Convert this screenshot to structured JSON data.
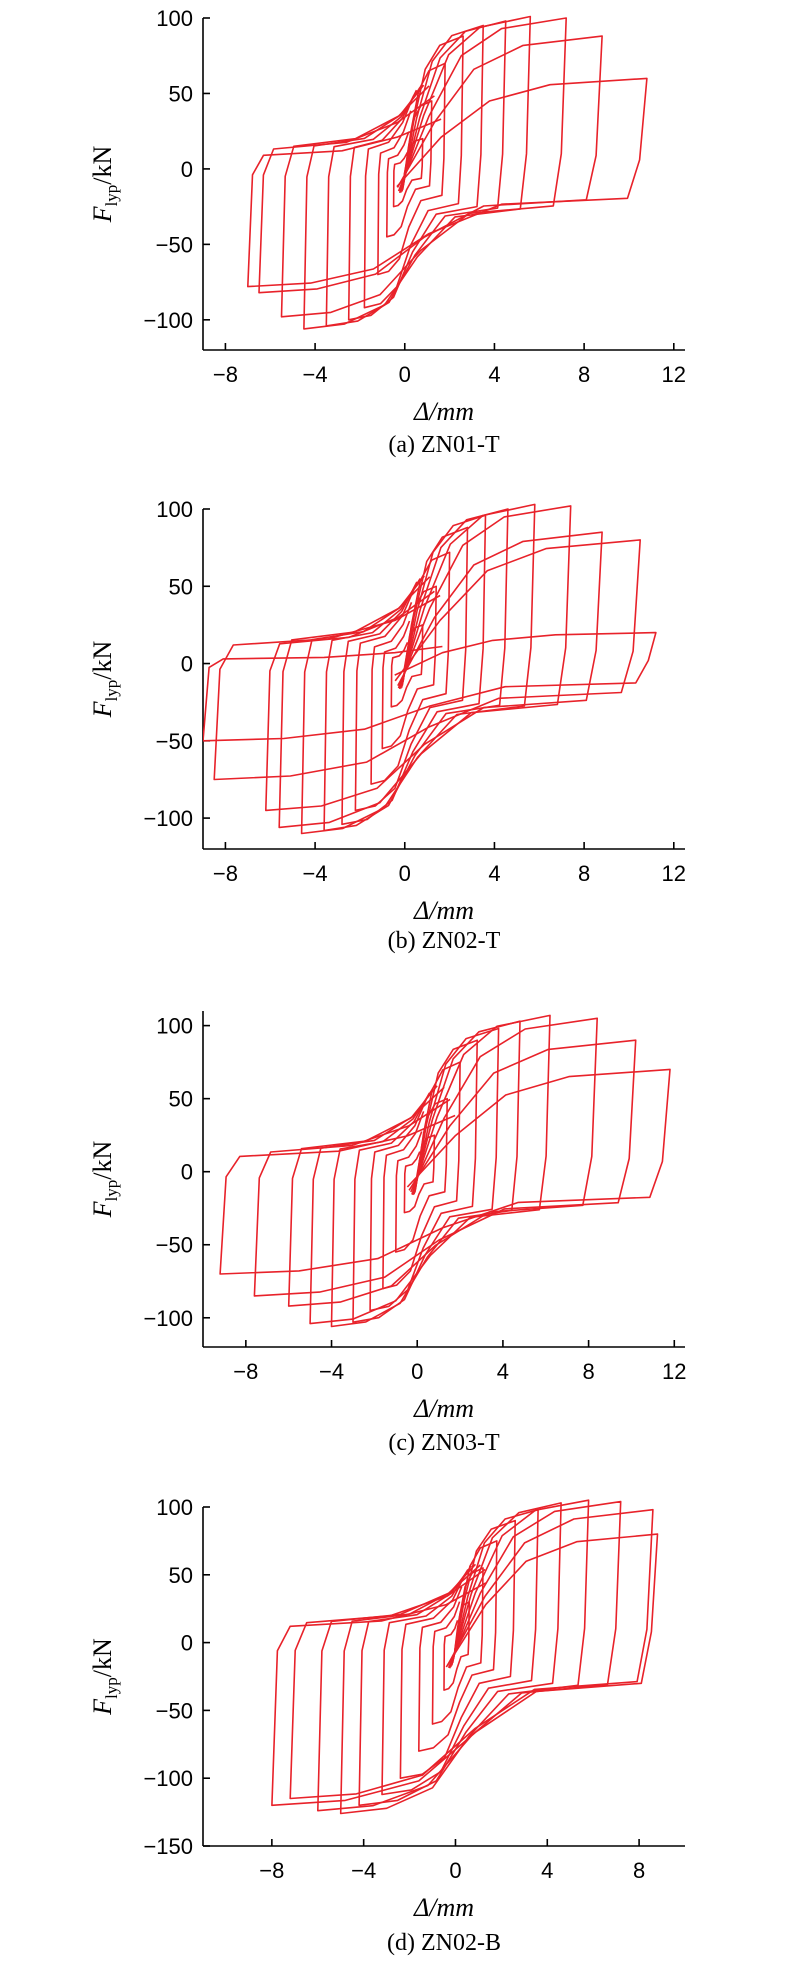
{
  "chart_data": [
    {
      "type": "line",
      "caption": "(a) ZN01-T",
      "xlabel": "Δ/mm",
      "ylabel_main": "F",
      "ylabel_sub": "lyp",
      "ylabel_unit": "/kN",
      "xlim": [
        -9,
        12.5
      ],
      "ylim": [
        -120,
        100
      ],
      "xticks": [
        -8,
        -4,
        0,
        4,
        8,
        12
      ],
      "yticks": [
        -100,
        -50,
        0,
        50,
        100
      ],
      "color": "#e8222a",
      "series": [
        {
          "values": [
            {
              "dmax": 0.8,
              "fmax": 20,
              "dmin": -0.5,
              "fmin": -25
            },
            {
              "dmax": 1.2,
              "fmax": 45,
              "dmin": -0.8,
              "fmin": -45
            },
            {
              "dmax": 1.8,
              "fmax": 70,
              "dmin": -1.2,
              "fmin": -70
            },
            {
              "dmax": 2.6,
              "fmax": 88,
              "dmin": -1.8,
              "fmin": -92
            },
            {
              "dmax": 3.5,
              "fmax": 95,
              "dmin": -2.5,
              "fmin": -100
            },
            {
              "dmax": 4.5,
              "fmax": 98,
              "dmin": -3.5,
              "fmin": -104
            },
            {
              "dmax": 5.6,
              "fmax": 101,
              "dmin": -4.5,
              "fmin": -106
            },
            {
              "dmax": 7.2,
              "fmax": 100,
              "dmin": -5.5,
              "fmin": -98
            },
            {
              "dmax": 8.8,
              "fmax": 88,
              "dmin": -6.5,
              "fmin": -82
            },
            {
              "dmax": 10.8,
              "fmax": 60,
              "dmin": -7.0,
              "fmin": -78
            }
          ]
        }
      ]
    },
    {
      "type": "line",
      "caption": "(b) ZN02-T",
      "xlabel": "Δ/mm",
      "ylabel_main": "F",
      "ylabel_sub": "lyp",
      "ylabel_unit": "/kN",
      "xlim": [
        -9,
        12.5
      ],
      "ylim": [
        -120,
        100
      ],
      "xticks": [
        -8,
        -4,
        0,
        4,
        8,
        12
      ],
      "yticks": [
        -100,
        -50,
        0,
        50,
        100
      ],
      "color": "#e8222a",
      "series": [
        {
          "values": [
            {
              "dmax": 0.8,
              "fmax": 25,
              "dmin": -0.6,
              "fmin": -28
            },
            {
              "dmax": 1.4,
              "fmax": 50,
              "dmin": -1.0,
              "fmin": -55
            },
            {
              "dmax": 2.0,
              "fmax": 72,
              "dmin": -1.5,
              "fmin": -78
            },
            {
              "dmax": 2.8,
              "fmax": 88,
              "dmin": -2.2,
              "fmin": -95
            },
            {
              "dmax": 3.6,
              "fmax": 96,
              "dmin": -2.8,
              "fmin": -104
            },
            {
              "dmax": 4.6,
              "fmax": 100,
              "dmin": -3.6,
              "fmin": -108
            },
            {
              "dmax": 5.8,
              "fmax": 103,
              "dmin": -4.6,
              "fmin": -110
            },
            {
              "dmax": 7.4,
              "fmax": 102,
              "dmin": -5.6,
              "fmin": -106
            },
            {
              "dmax": 8.8,
              "fmax": 85,
              "dmin": -6.2,
              "fmin": -95
            },
            {
              "dmax": 10.5,
              "fmax": 80,
              "dmin": -8.5,
              "fmin": -75
            },
            {
              "dmax": 11.2,
              "fmax": 20,
              "dmin": -9.0,
              "fmin": -50
            }
          ]
        }
      ]
    },
    {
      "type": "line",
      "caption": "(c) ZN03-T",
      "xlabel": "Δ/mm",
      "ylabel_main": "F",
      "ylabel_sub": "lyp",
      "ylabel_unit": "/kN",
      "xlim": [
        -10,
        12.5
      ],
      "ylim": [
        -120,
        110
      ],
      "xticks": [
        -8,
        -4,
        0,
        4,
        8,
        12
      ],
      "yticks": [
        -100,
        -50,
        0,
        50,
        100
      ],
      "color": "#e8222a",
      "series": [
        {
          "values": [
            {
              "dmax": 0.8,
              "fmax": 25,
              "dmin": -0.6,
              "fmin": -28
            },
            {
              "dmax": 1.4,
              "fmax": 50,
              "dmin": -1.0,
              "fmin": -55
            },
            {
              "dmax": 2.0,
              "fmax": 75,
              "dmin": -1.6,
              "fmin": -80
            },
            {
              "dmax": 2.8,
              "fmax": 90,
              "dmin": -2.2,
              "fmin": -95
            },
            {
              "dmax": 3.8,
              "fmax": 98,
              "dmin": -3.0,
              "fmin": -103
            },
            {
              "dmax": 4.8,
              "fmax": 103,
              "dmin": -4.0,
              "fmin": -106
            },
            {
              "dmax": 6.2,
              "fmax": 107,
              "dmin": -5.0,
              "fmin": -104
            },
            {
              "dmax": 8.4,
              "fmax": 105,
              "dmin": -6.0,
              "fmin": -92
            },
            {
              "dmax": 10.2,
              "fmax": 90,
              "dmin": -7.6,
              "fmin": -85
            },
            {
              "dmax": 11.8,
              "fmax": 70,
              "dmin": -9.2,
              "fmin": -70
            }
          ]
        }
      ]
    },
    {
      "type": "line",
      "caption": "(d) ZN02-B",
      "xlabel": "Δ/mm",
      "ylabel_main": "F",
      "ylabel_sub": "lyp",
      "ylabel_unit": "/kN",
      "xlim": [
        -11,
        10
      ],
      "ylim": [
        -150,
        100
      ],
      "xticks": [
        -8,
        -4,
        0,
        4,
        8
      ],
      "yticks": [
        -150,
        -100,
        -50,
        0,
        50,
        100
      ],
      "color": "#e8222a",
      "series": [
        {
          "values": [
            {
              "dmax": 0.6,
              "fmax": 30,
              "dmin": -0.5,
              "fmin": -35
            },
            {
              "dmax": 1.2,
              "fmax": 55,
              "dmin": -1.0,
              "fmin": -60
            },
            {
              "dmax": 1.8,
              "fmax": 75,
              "dmin": -1.6,
              "fmin": -80
            },
            {
              "dmax": 2.6,
              "fmax": 90,
              "dmin": -2.4,
              "fmin": -100
            },
            {
              "dmax": 3.6,
              "fmax": 98,
              "dmin": -3.2,
              "fmin": -112
            },
            {
              "dmax": 4.6,
              "fmax": 103,
              "dmin": -4.2,
              "fmin": -120
            },
            {
              "dmax": 5.8,
              "fmax": 105,
              "dmin": -5.0,
              "fmin": -126
            },
            {
              "dmax": 7.2,
              "fmax": 104,
              "dmin": -6.0,
              "fmin": -124
            },
            {
              "dmax": 8.6,
              "fmax": 98,
              "dmin": -7.2,
              "fmin": -115
            },
            {
              "dmax": 8.8,
              "fmax": 80,
              "dmin": -8.0,
              "fmin": -120
            }
          ]
        }
      ]
    }
  ]
}
